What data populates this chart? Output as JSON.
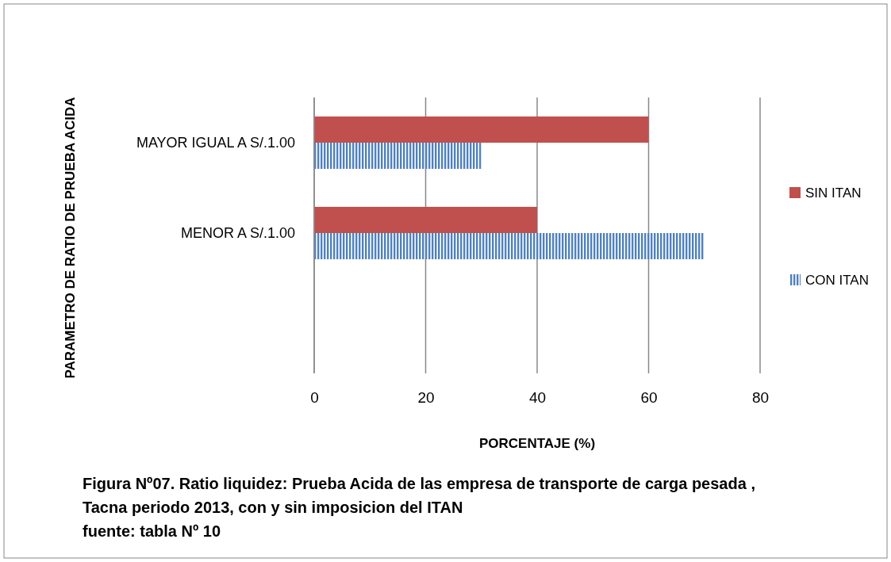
{
  "chart_data": {
    "type": "bar",
    "orientation": "horizontal",
    "title": "Figura Nº07. Ratio liquidez: Prueba Acida de las empresa de transporte de carga pesada , Tacna periodo  2013, con y sin imposicion del ITAN",
    "annotations": [
      "fuente: tabla Nº 10"
    ],
    "xlabel": "PORCENTAJE (%)",
    "ylabel": "PARAMETRO DE RATIO DE PRUEBA ACIDA",
    "categories": [
      "MAYOR IGUAL A S/.1.00",
      "MENOR A S/.1.00",
      null
    ],
    "series": [
      {
        "name": "SIN ITAN",
        "color": "#c0504d",
        "values": [
          60,
          40,
          null
        ]
      },
      {
        "name": "CON ITAN",
        "color": "#4f81bd",
        "values": [
          30,
          70,
          null
        ]
      }
    ],
    "xlim": [
      0,
      80
    ],
    "xticks": [
      0,
      20,
      40,
      60,
      80
    ],
    "grid": "x",
    "legend": "right"
  }
}
